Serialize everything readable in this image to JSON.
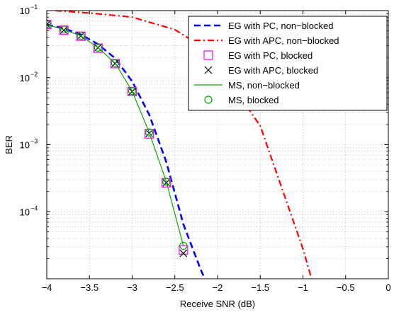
{
  "chart_data": {
    "type": "line",
    "title": "",
    "xlabel": "Receive SNR (dB)",
    "ylabel": "BER",
    "xlim": [
      -4,
      0
    ],
    "ylim": [
      1e-05,
      0.1
    ],
    "yscale": "log",
    "grid": true,
    "legend_position": "top-right",
    "x_ticks": [
      -4,
      -3.5,
      -3,
      -2.5,
      -2,
      -1.5,
      -1,
      -0.5,
      0
    ],
    "x_tick_labels": [
      "−4",
      "−3.5",
      "−3",
      "−2.5",
      "−2",
      "−1.5",
      "−1",
      "−0.5",
      "0"
    ],
    "y_ticks": [
      0.1,
      0.01,
      0.001,
      0.0001
    ],
    "y_tick_labels": [
      {
        "base": "10",
        "exp": "−1"
      },
      {
        "base": "10",
        "exp": "−2"
      },
      {
        "base": "10",
        "exp": "−3"
      },
      {
        "base": "10",
        "exp": "−4"
      }
    ],
    "series": [
      {
        "name": "EG with PC, non−blocked",
        "style": "dashed",
        "color": "#0000ff",
        "marker": "none",
        "x": [
          -4,
          -3.8,
          -3.6,
          -3.4,
          -3.2,
          -3.0,
          -2.8,
          -2.6,
          -2.4,
          -2.2,
          -2.15
        ],
        "y": [
          0.062,
          0.0545,
          0.044,
          0.0315,
          0.0195,
          0.0088,
          0.0028,
          0.00055,
          6.5e-05,
          1.4e-05,
          1e-05
        ]
      },
      {
        "name": "EG with APC, non−blocked",
        "style": "dashdot",
        "color": "#ff0000",
        "marker": "none",
        "x": [
          -3.9,
          -3.5,
          -3.0,
          -2.5,
          -2.2,
          -2.0,
          -1.5,
          -1.0,
          -0.9
        ],
        "y": [
          0.1,
          0.092,
          0.08,
          0.052,
          0.03,
          0.016,
          0.0019,
          2.8e-05,
          1e-05
        ]
      },
      {
        "name": "EG with PC, blocked",
        "style": "none",
        "color": "#ff00ff",
        "marker": "square",
        "x": [
          -4.0,
          -3.8,
          -3.6,
          -3.4,
          -3.2,
          -3.0,
          -2.8,
          -2.6,
          -2.4
        ],
        "y": [
          0.062,
          0.051,
          0.0415,
          0.0275,
          0.0162,
          0.0062,
          0.00145,
          0.00027,
          2.7e-05
        ]
      },
      {
        "name": "EG with APC, blocked",
        "style": "none",
        "color": "#000000",
        "marker": "x",
        "x": [
          -4.0,
          -3.8,
          -3.6,
          -3.4,
          -3.2,
          -3.0,
          -2.8,
          -2.6,
          -2.4
        ],
        "y": [
          0.062,
          0.051,
          0.042,
          0.028,
          0.0162,
          0.0062,
          0.00148,
          0.00027,
          2.4e-05
        ]
      },
      {
        "name": "MS, non−blocked",
        "style": "solid",
        "color": "#00aa00",
        "marker": "none",
        "x": [
          -4.0,
          -3.8,
          -3.6,
          -3.4,
          -3.2,
          -3.0,
          -2.8,
          -2.6,
          -2.4
        ],
        "y": [
          0.062,
          0.052,
          0.042,
          0.028,
          0.0165,
          0.0063,
          0.00152,
          0.00028,
          3.1e-05
        ]
      },
      {
        "name": "MS, blocked",
        "style": "none",
        "color": "#00aa00",
        "marker": "circle",
        "x": [
          -4.0,
          -3.8,
          -3.6,
          -3.4,
          -3.2,
          -3.0,
          -2.8,
          -2.6,
          -2.4
        ],
        "y": [
          0.063,
          0.052,
          0.042,
          0.028,
          0.0165,
          0.0063,
          0.00152,
          0.00028,
          3.1e-05
        ]
      }
    ]
  }
}
